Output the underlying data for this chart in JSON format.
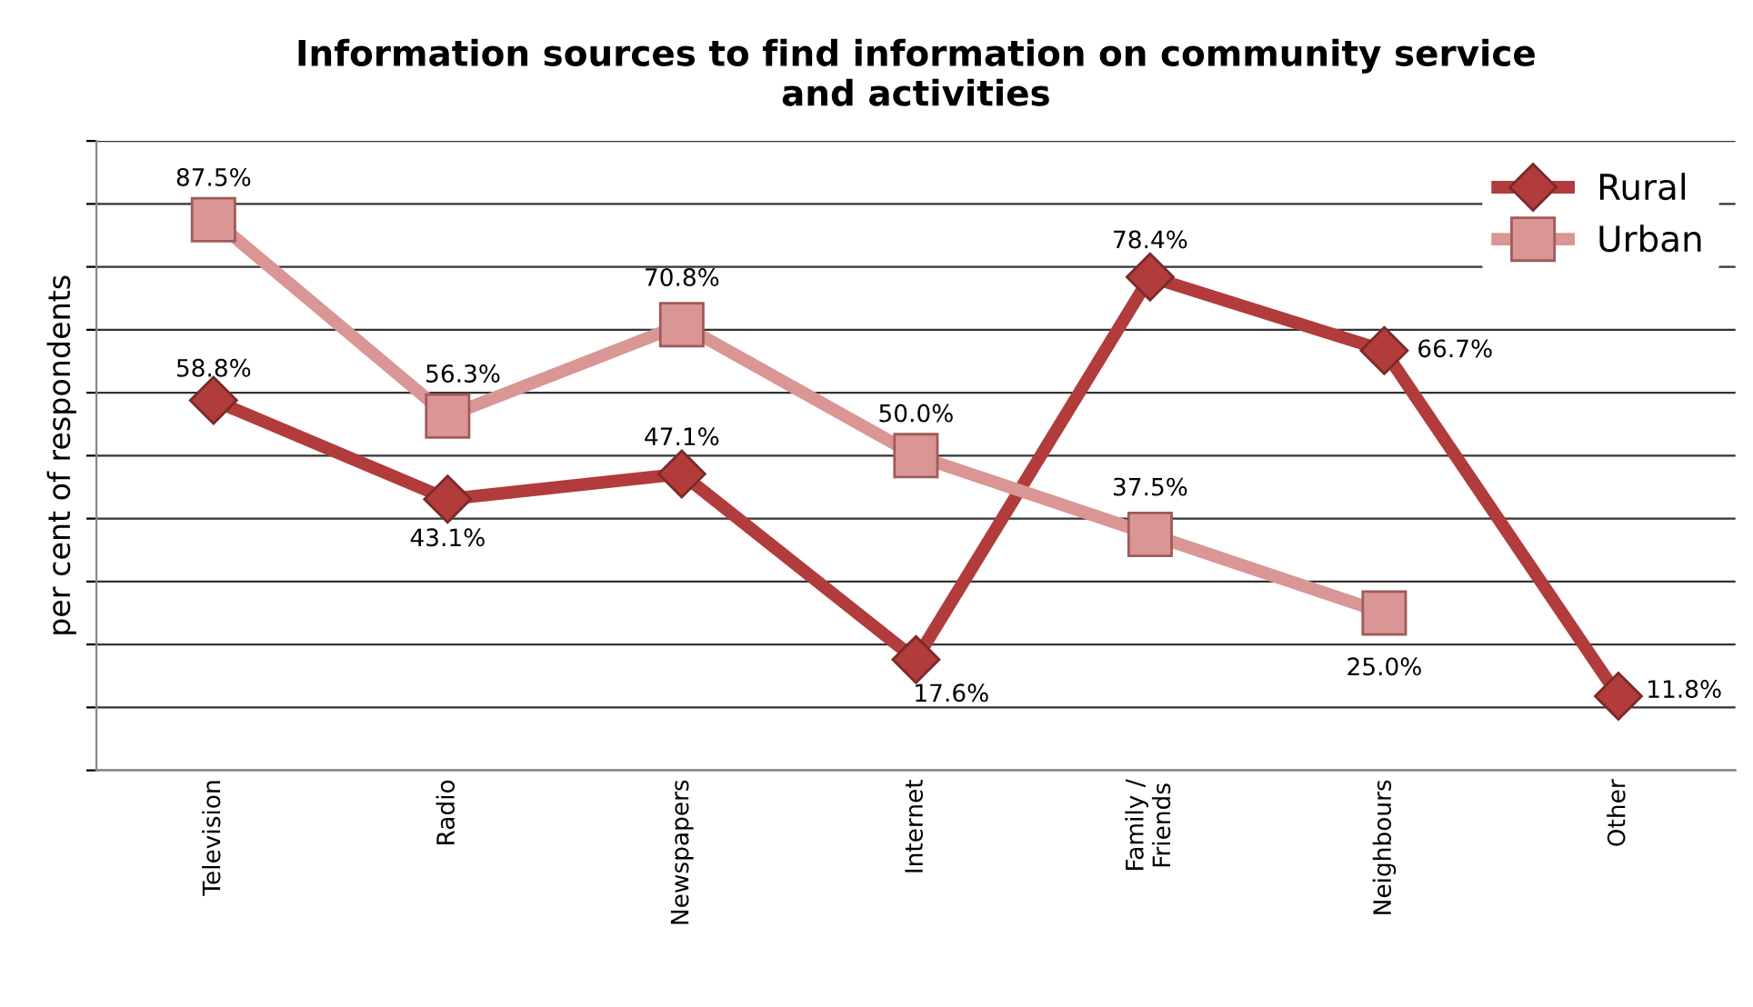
{
  "chart_data": {
    "type": "line",
    "title": "Information sources to find information on community service\nand activities",
    "ylabel": "per cent of respondents",
    "categories": [
      "Television",
      "Radio",
      "Newspapers",
      "Internet",
      "Family /\nFriends",
      "Neighbours",
      "Other"
    ],
    "series": [
      {
        "name": "Rural",
        "color": "#b23b3b",
        "marker": "diamond",
        "values": [
          58.8,
          43.1,
          47.1,
          17.6,
          78.4,
          66.7,
          11.8
        ],
        "value_labels": [
          "58.8%",
          "43.1%",
          "47.1%",
          "17.6%",
          "78.4%",
          "66.7%",
          "11.8%"
        ]
      },
      {
        "name": "Urban",
        "color": "#d99694",
        "marker": "square",
        "values": [
          87.5,
          56.3,
          70.8,
          50.0,
          37.5,
          25.0,
          null
        ],
        "value_labels": [
          "87.5%",
          "56.3%",
          "70.8%",
          "50.0%",
          "37.5%",
          "25.0%",
          null
        ]
      }
    ],
    "ylim": [
      0,
      100
    ],
    "yticks": [
      {
        "value": 0,
        "label": null
      },
      {
        "value": 10,
        "label": null
      },
      {
        "value": 20,
        "label": null
      },
      {
        "value": 30,
        "label": null
      },
      {
        "value": 40,
        "label": null
      },
      {
        "value": 50,
        "label": null
      },
      {
        "value": 60,
        "label": null
      },
      {
        "value": 70,
        "label": null
      },
      {
        "value": 80,
        "label": null
      },
      {
        "value": 90,
        "label": null
      },
      {
        "value": 100,
        "label": null
      }
    ],
    "tick_labels": "x",
    "grid": "y",
    "legend": "top right",
    "line_style": "solid"
  }
}
